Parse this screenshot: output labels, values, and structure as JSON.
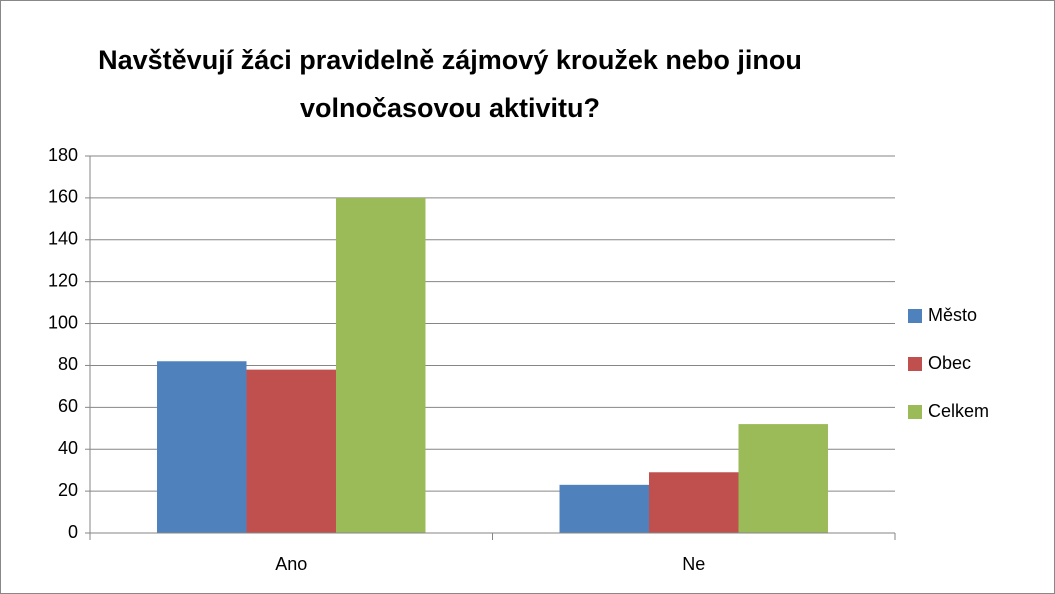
{
  "chart_data": {
    "type": "bar",
    "title": "Navštěvují žáci pravidelně zájmový kroužek nebo jinou volnočasovou aktivitu?",
    "categories": [
      "Ano",
      "Ne"
    ],
    "series": [
      {
        "name": "Město",
        "color": "#4f81bd",
        "values": [
          82,
          23
        ]
      },
      {
        "name": "Obec",
        "color": "#c0504d",
        "values": [
          78,
          29
        ]
      },
      {
        "name": "Celkem",
        "color": "#9bbb59",
        "values": [
          160,
          52
        ]
      }
    ],
    "ylim": [
      0,
      180
    ],
    "yticks": [
      0,
      20,
      40,
      60,
      80,
      100,
      120,
      140,
      160,
      180
    ],
    "grid": true,
    "legend": "right"
  }
}
